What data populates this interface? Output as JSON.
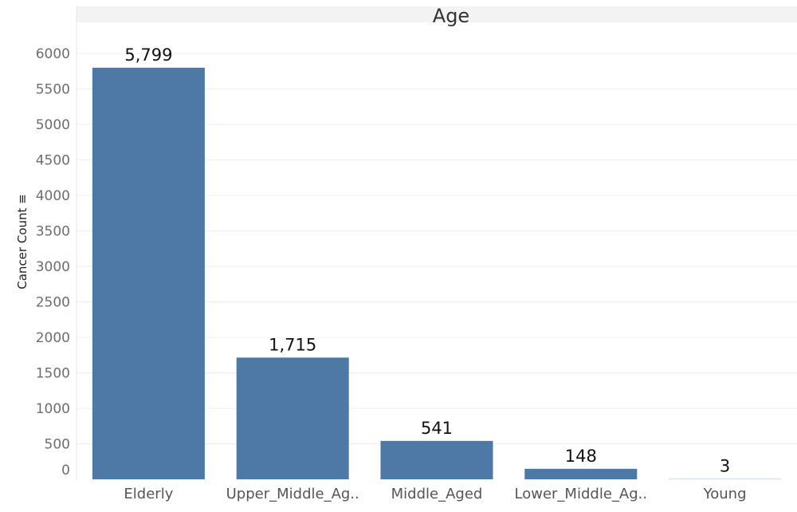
{
  "chart_data": {
    "type": "bar",
    "title": "Age",
    "ylabel": "Cancer Count ≡",
    "xlabel": "",
    "categories": [
      "Elderly",
      "Upper_Middle_Ag..",
      "Middle_Aged",
      "Lower_Middle_Ag..",
      "Young"
    ],
    "values": [
      5799,
      1715,
      541,
      148,
      3
    ],
    "data_labels": [
      "5,799",
      "1,715",
      "541",
      "148",
      "3"
    ],
    "yticks": [
      0,
      500,
      1000,
      1500,
      2000,
      2500,
      3000,
      3500,
      4000,
      4500,
      5000,
      5500,
      6000
    ],
    "ylim": [
      0,
      6000
    ],
    "grid": true,
    "bar_color": "#4e79a7",
    "gridline_color": "#efefef",
    "header_band_color": "#f3f3f3"
  }
}
